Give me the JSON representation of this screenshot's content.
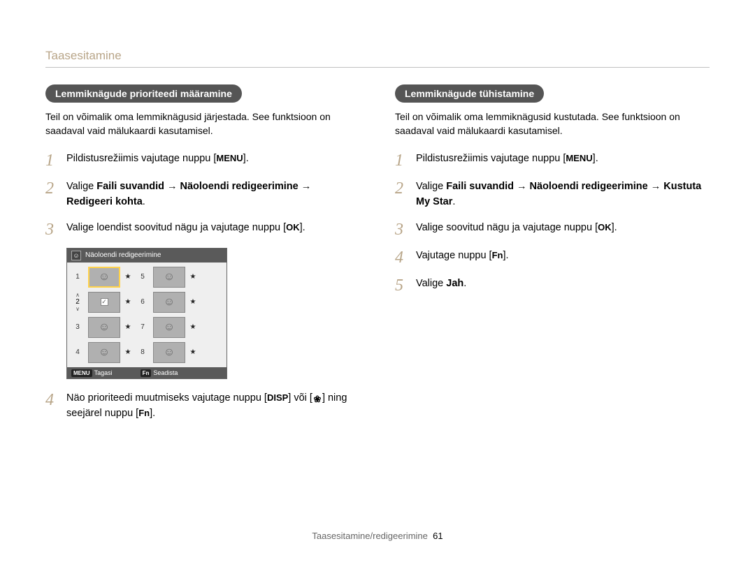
{
  "section_header": "Taasesitamine",
  "left": {
    "pill": "Lemmiknägude prioriteedi määramine",
    "intro": "Teil on võimalik oma lemmiknägusid järjestada. See funktsioon on saadaval vaid mälukaardi kasutamisel.",
    "steps": {
      "s1_pre": "Pildistusrežiimis vajutage nuppu [",
      "s1_btn": "MENU",
      "s1_post": "].",
      "s2_pre": "Valige ",
      "s2_bold": "Faili suvandid → Näoloendi redigeerimine → Redigeeri kohta",
      "s2_post": ".",
      "s3_pre": "Valige loendist soovitud nägu ja vajutage nuppu [",
      "s3_btn": "OK",
      "s3_post": "].",
      "s4_pre": "Näo prioriteedi muutmiseks vajutage nuppu [",
      "s4_btn1": "DISP",
      "s4_mid": "] või [",
      "s4_mid2": "] ning seejärel nuppu [",
      "s4_btn2": "Fn",
      "s4_post": "]."
    },
    "screenshot": {
      "title": "Näoloendi redigeerimine",
      "left_nums": [
        "1",
        "2",
        "3",
        "4"
      ],
      "right_nums": [
        "5",
        "6",
        "7",
        "8"
      ],
      "footer_back_tag": "MENU",
      "footer_back": "Tagasi",
      "footer_set_tag": "Fn",
      "footer_set": "Seadista",
      "star": "★",
      "check": "✓"
    }
  },
  "right": {
    "pill": "Lemmiknägude tühistamine",
    "intro": "Teil on võimalik oma lemmiknägusid kustutada. See funktsioon on saadaval vaid mälukaardi kasutamisel.",
    "steps": {
      "s1_pre": "Pildistusrežiimis vajutage nuppu [",
      "s1_btn": "MENU",
      "s1_post": "].",
      "s2_pre": "Valige ",
      "s2_bold": "Faili suvandid → Näoloendi redigeerimine → Kustuta My Star",
      "s2_post": ".",
      "s3_pre": "Valige soovitud nägu ja vajutage nuppu [",
      "s3_btn": "OK",
      "s3_post": "].",
      "s4_pre": "Vajutage nuppu [",
      "s4_btn": "Fn",
      "s4_post": "].",
      "s5_pre": "Valige ",
      "s5_bold": "Jah",
      "s5_post": "."
    }
  },
  "footer": {
    "label": "Taasesitamine/redigeerimine",
    "page": "61"
  },
  "colors": {
    "accent": "#b8a588",
    "pill_bg": "#555555",
    "rule": "#c0c0c0"
  }
}
